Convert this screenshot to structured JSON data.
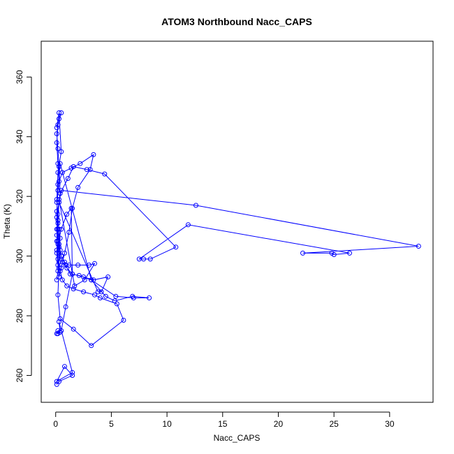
{
  "chart_data": {
    "type": "scatter",
    "title": "ATOM3 Northbound Nacc_CAPS",
    "xlabel": "Nacc_CAPS",
    "ylabel": "Theta (K)",
    "xlim": [
      -1.3,
      33.9
    ],
    "ylim": [
      251,
      372
    ],
    "x_ticks": [
      0,
      5,
      10,
      15,
      20,
      25,
      30
    ],
    "y_ticks": [
      260,
      280,
      300,
      320,
      340,
      360
    ],
    "grid": false,
    "connected": true,
    "marker": "open-circle",
    "color": "#0000ff",
    "series": [
      {
        "x": [
          0.1,
          0.3,
          0.5,
          0.2,
          0.1,
          0.3,
          0.4,
          0.2,
          0.1,
          0.3,
          0.2,
          0.1,
          0.4,
          0.3,
          0.2,
          0.1,
          0.3,
          0.5,
          0.2,
          0.1,
          0.2,
          0.3,
          0.1,
          0.2,
          0.4,
          0.1,
          0.2,
          0.3,
          0.5,
          0.8,
          1.2,
          1.5,
          2.0,
          3.1,
          3.4,
          2.2,
          1.4,
          0.6,
          0.2,
          0.4,
          1.1,
          1.6,
          2.8,
          4.4,
          10.8,
          8.5,
          7.9,
          7.5,
          11.9,
          26.4,
          25.0,
          24.8,
          22.2,
          32.6,
          12.6,
          0.5,
          0.3,
          0.2,
          0.1,
          0.2,
          0.3,
          0.6,
          1.0,
          1.5,
          2.5,
          3.4,
          4.7,
          4.1,
          3.8,
          0.3,
          0.2,
          0.1,
          0.3,
          0.5,
          0.9,
          1.3,
          2.1,
          3.2,
          5.4,
          7.0,
          8.4,
          6.9,
          5.3,
          4.5,
          3.2,
          0.4,
          0.2,
          0.1,
          0.2,
          0.3,
          0.5,
          0.8,
          1.2,
          2.0,
          3.0,
          3.5,
          2.6,
          1.7,
          0.3,
          0.2,
          0.1,
          0.2,
          0.4,
          0.6,
          1.0,
          1.6,
          2.5,
          3.5,
          4.0,
          5.5,
          6.1,
          3.2,
          1.6,
          0.4,
          0.2,
          0.3,
          0.1,
          0.2,
          0.5,
          1.0,
          1.4,
          1.5,
          0.9,
          0.5,
          0.2,
          0.1,
          0.2,
          0.4,
          0.3,
          1.5,
          0.1,
          0.8,
          1.5,
          0.3,
          0.1
        ],
        "y": [
          343,
          348,
          335,
          328,
          318,
          309,
          302,
          295,
          292,
          298,
          305,
          313,
          321,
          330,
          336,
          341,
          346,
          348,
          344,
          338,
          331,
          325,
          319,
          312,
          306,
          301,
          297,
          293,
          296,
          301,
          308,
          316,
          323,
          329,
          334,
          331,
          329.5,
          328,
          324,
          321,
          326,
          330,
          329,
          327.5,
          303,
          299,
          299,
          299,
          310.5,
          301,
          300.5,
          301,
          301,
          303.3,
          317,
          322,
          318,
          314,
          309,
          305,
          301,
          298,
          296,
          294,
          293,
          292,
          293,
          288,
          288,
          318,
          312,
          307,
          303,
          300,
          297,
          294,
          293.5,
          292,
          286.5,
          286,
          286,
          286.5,
          285,
          286.5,
          292,
          331,
          322,
          315,
          309,
          304,
          300,
          298,
          297,
          297,
          297,
          297.5,
          292,
          290,
          319,
          311,
          305,
          299,
          295,
          292,
          290,
          289,
          288,
          287,
          286,
          284,
          278.5,
          270,
          275.5,
          279,
          287,
          296,
          302,
          304,
          309,
          314,
          316,
          294,
          283,
          275,
          275,
          274,
          274,
          274.5,
          278,
          261,
          258,
          263,
          260,
          258,
          257
        ]
      }
    ]
  }
}
